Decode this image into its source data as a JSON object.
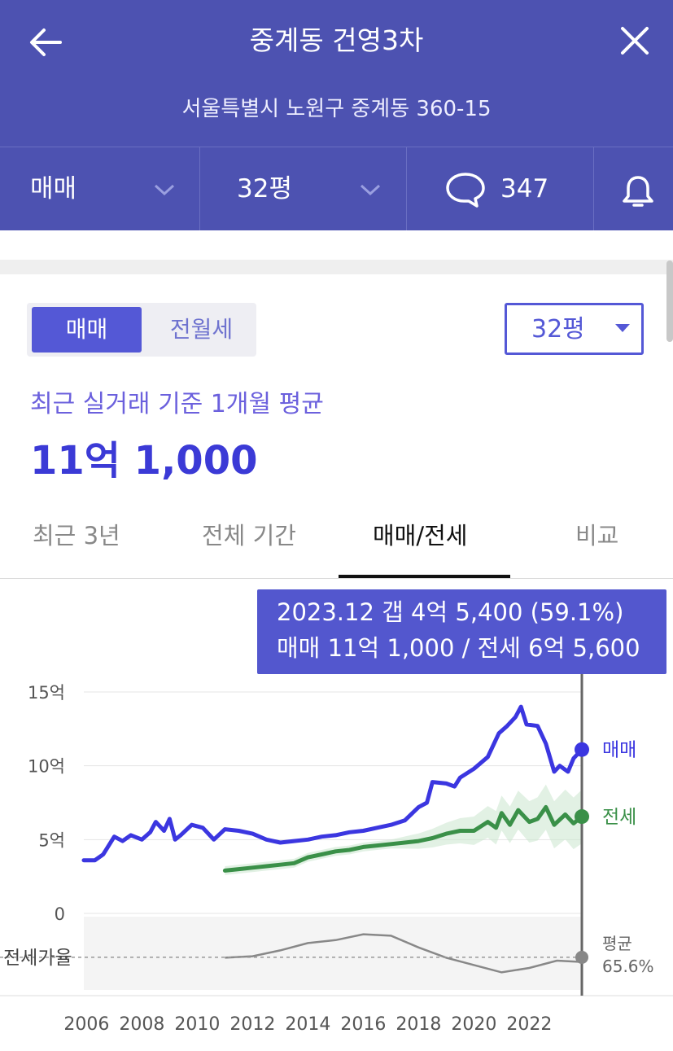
{
  "header": {
    "title": "중계동 건영3차",
    "address": "서울특별시 노원구 중계동 360-15",
    "filters": {
      "deal_type": "매매",
      "area": "32평",
      "comments_count": "347"
    }
  },
  "controls": {
    "segment": [
      "매매",
      "전월세"
    ],
    "selected_segment": "매매",
    "area_select": "32평"
  },
  "summary": {
    "caption": "최근 실거래 기준 1개월 평균",
    "price": "11억 1,000"
  },
  "tabs": [
    "최근 3년",
    "전체 기간",
    "매매/전세",
    "비교"
  ],
  "active_tab": "매매/전세",
  "tooltip": {
    "line1": "2023.12  갭 4억 5,400 (59.1%)",
    "line2": "매매 11억 1,000 / 전세 6억 5,600"
  },
  "colors": {
    "header": "#4d52b1",
    "sale": "#3b36e0",
    "jeonse": "#3a9048",
    "ratio": "#888888",
    "tooltip": "#5357ce"
  },
  "chart_data": {
    "type": "line",
    "x_unit": "year",
    "y_unit": "억",
    "ylim": [
      0,
      15
    ],
    "y_ticks": [
      {
        "value": 15,
        "label": "15억"
      },
      {
        "value": 10,
        "label": "10억"
      },
      {
        "value": 5,
        "label": "5억"
      },
      {
        "value": 0,
        "label": "0"
      }
    ],
    "x_ticks": [
      "2006",
      "2008",
      "2010",
      "2012",
      "2014",
      "2016",
      "2018",
      "2020",
      "2022"
    ],
    "series": [
      {
        "name": "매매",
        "points": [
          [
            2005.9,
            3.6
          ],
          [
            2006.3,
            3.6
          ],
          [
            2006.6,
            4.0
          ],
          [
            2007.0,
            5.2
          ],
          [
            2007.3,
            4.9
          ],
          [
            2007.6,
            5.3
          ],
          [
            2008.0,
            5.0
          ],
          [
            2008.3,
            5.5
          ],
          [
            2008.5,
            6.2
          ],
          [
            2008.8,
            5.6
          ],
          [
            2009.0,
            6.4
          ],
          [
            2009.2,
            5.0
          ],
          [
            2009.4,
            5.3
          ],
          [
            2009.8,
            6.0
          ],
          [
            2010.2,
            5.8
          ],
          [
            2010.6,
            5.0
          ],
          [
            2011.0,
            5.7
          ],
          [
            2011.5,
            5.6
          ],
          [
            2012.0,
            5.4
          ],
          [
            2012.5,
            5.0
          ],
          [
            2013.0,
            4.8
          ],
          [
            2013.5,
            4.9
          ],
          [
            2014.0,
            5.0
          ],
          [
            2014.5,
            5.2
          ],
          [
            2015.0,
            5.3
          ],
          [
            2015.5,
            5.5
          ],
          [
            2016.0,
            5.6
          ],
          [
            2016.5,
            5.8
          ],
          [
            2017.0,
            6.0
          ],
          [
            2017.5,
            6.3
          ],
          [
            2018.0,
            7.2
          ],
          [
            2018.3,
            7.5
          ],
          [
            2018.5,
            8.9
          ],
          [
            2019.0,
            8.8
          ],
          [
            2019.3,
            8.6
          ],
          [
            2019.5,
            9.2
          ],
          [
            2020.0,
            9.8
          ],
          [
            2020.5,
            10.6
          ],
          [
            2020.9,
            12.2
          ],
          [
            2021.2,
            12.7
          ],
          [
            2021.5,
            13.3
          ],
          [
            2021.7,
            14.0
          ],
          [
            2021.9,
            12.8
          ],
          [
            2022.3,
            12.7
          ],
          [
            2022.6,
            11.5
          ],
          [
            2022.9,
            9.6
          ],
          [
            2023.1,
            10.0
          ],
          [
            2023.4,
            9.6
          ],
          [
            2023.6,
            10.5
          ],
          [
            2023.9,
            11.1
          ]
        ]
      },
      {
        "name": "전세",
        "points": [
          [
            2011.0,
            2.9
          ],
          [
            2011.5,
            3.0
          ],
          [
            2012.0,
            3.1
          ],
          [
            2012.5,
            3.2
          ],
          [
            2013.0,
            3.3
          ],
          [
            2013.5,
            3.4
          ],
          [
            2014.0,
            3.8
          ],
          [
            2014.5,
            4.0
          ],
          [
            2015.0,
            4.2
          ],
          [
            2015.5,
            4.3
          ],
          [
            2016.0,
            4.5
          ],
          [
            2016.5,
            4.6
          ],
          [
            2017.0,
            4.7
          ],
          [
            2017.5,
            4.8
          ],
          [
            2018.0,
            4.9
          ],
          [
            2018.5,
            5.1
          ],
          [
            2019.0,
            5.4
          ],
          [
            2019.5,
            5.6
          ],
          [
            2020.0,
            5.6
          ],
          [
            2020.5,
            6.2
          ],
          [
            2020.8,
            5.8
          ],
          [
            2021.0,
            6.8
          ],
          [
            2021.3,
            6.0
          ],
          [
            2021.6,
            7.0
          ],
          [
            2022.0,
            6.2
          ],
          [
            2022.3,
            6.4
          ],
          [
            2022.6,
            7.2
          ],
          [
            2022.9,
            6.0
          ],
          [
            2023.3,
            6.7
          ],
          [
            2023.6,
            6.1
          ],
          [
            2023.9,
            6.56
          ]
        ]
      }
    ],
    "ratio_series": {
      "name": "전세가율",
      "average_label": "평균",
      "average_value": "65.6%",
      "points": [
        [
          2011.0,
          62
        ],
        [
          2012.0,
          63
        ],
        [
          2013.0,
          67
        ],
        [
          2014.0,
          72
        ],
        [
          2015.0,
          74
        ],
        [
          2016.0,
          78
        ],
        [
          2017.0,
          77
        ],
        [
          2018.0,
          69
        ],
        [
          2019.0,
          62
        ],
        [
          2020.0,
          57
        ],
        [
          2021.0,
          52
        ],
        [
          2022.0,
          55
        ],
        [
          2023.0,
          60
        ],
        [
          2023.9,
          59.1
        ]
      ]
    },
    "series_labels": [
      "매매",
      "전세"
    ]
  }
}
